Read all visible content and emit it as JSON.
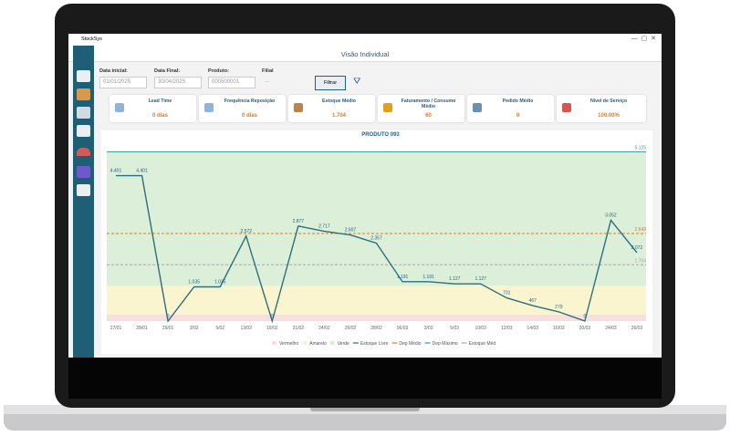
{
  "app": {
    "name": "StockSys",
    "window_title": "Visão Individual"
  },
  "filters": [
    {
      "label": "Data inicial:",
      "value": "01/01/2025"
    },
    {
      "label": "Data Final:",
      "value": "30/04/2025"
    },
    {
      "label": "Produto:",
      "value": "000500001"
    },
    {
      "label": "Filial",
      "value": "..."
    }
  ],
  "button": "Filtrar",
  "kpis": [
    {
      "label": "Lead Time",
      "value": "0 dias"
    },
    {
      "label": "Frequência Reposição",
      "value": "0 dias"
    },
    {
      "label": "Estoque Médio",
      "value": "1.704"
    },
    {
      "label": "Faturamento / Consumo Médio",
      "value": "60"
    },
    {
      "label": "Pedido Médio",
      "value": "0"
    },
    {
      "label": "Nível de Serviço",
      "value": "100,00%"
    }
  ],
  "chart_data": {
    "type": "line",
    "title": "PRODUTO 093",
    "categories": [
      "27/01",
      "28/01",
      "29/01",
      "3/02",
      "5/02",
      "13/02",
      "19/02",
      "21/02",
      "24/02",
      "26/02",
      "28/02",
      "06/03",
      "3/03",
      "5/03",
      "10/03",
      "12/03",
      "14/03",
      "16/03",
      "20/03",
      "24/03",
      "26/03"
    ],
    "zones": [
      {
        "name": "Vermelho",
        "color": "#f9dede",
        "from": 0,
        "to": 200
      },
      {
        "name": "Amarelo",
        "color": "#fbf5cf",
        "from": 200,
        "to": 1070
      },
      {
        "name": "Verde",
        "color": "#dcefd8",
        "from": 1070,
        "to": 5125
      }
    ],
    "series": [
      {
        "name": "Estoque Livre",
        "color": "#2e6f7e",
        "values": [
          4401,
          4401,
          0,
          1035,
          1035,
          2572,
          0,
          2877,
          2717,
          2607,
          2357,
          1191,
          1191,
          1127,
          1127,
          701,
          467,
          279,
          0,
          3052,
          2072
        ],
        "value_labels": [
          "4.401",
          "4.401",
          "0",
          "1.035",
          "1.035",
          "2.572",
          "0",
          "2.877",
          "2.717",
          "2.607",
          "2.357",
          "1.191",
          "1.191",
          "1.127",
          "1.127",
          "701",
          "467",
          "279",
          "0",
          "3.052",
          "2.072"
        ]
      }
    ],
    "reference_lines": [
      {
        "name": "Dep Médio",
        "color": "#e07b22",
        "value": 2649,
        "label": "2.649"
      },
      {
        "name": "Dep Máximo",
        "color": "#2a9d9d",
        "value": 5125,
        "label": "5.125"
      },
      {
        "name": "Estoque Méd",
        "color": "#a8a8a8",
        "value": 1704,
        "label": "1.704"
      }
    ],
    "ylim": [
      0,
      5300
    ]
  }
}
